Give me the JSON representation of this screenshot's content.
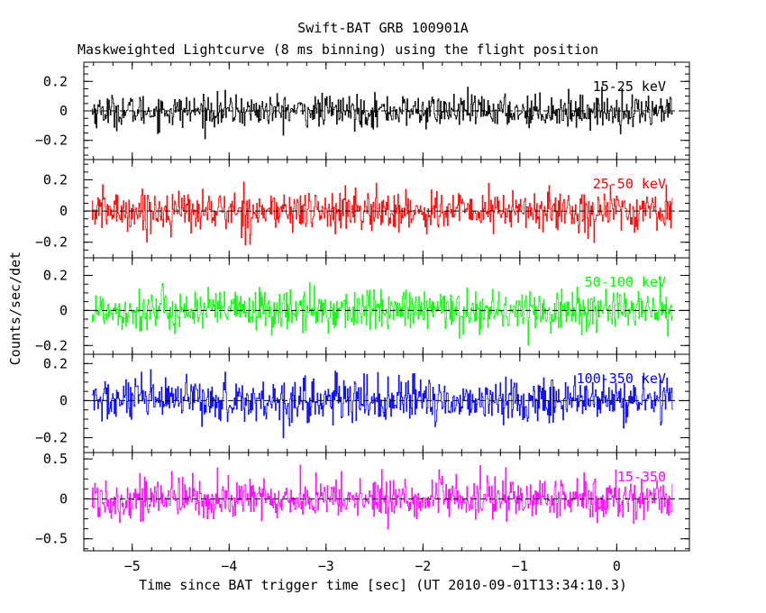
{
  "chart_data": {
    "type": "line",
    "title": "Swift-BAT GRB 100901A",
    "subtitle": "Maskweighted Lightcurve (8 ms binning) using the flight position",
    "xlabel": "Time since BAT trigger time [sec] (UT 2010-09-01T13:34:10.3)",
    "ylabel": "Counts/sec/det",
    "xlim": [
      -5.5,
      0.75
    ],
    "x_data_range": [
      -5.42,
      0.58
    ],
    "bin_width_sec": 0.008,
    "x_ticks": [
      -5,
      -4,
      -3,
      -2,
      -1,
      0
    ],
    "x_tick_labels": [
      "−5",
      "−4",
      "−3",
      "−2",
      "−1",
      "0"
    ],
    "grid": false,
    "panels": [
      {
        "name": "15-25 keV",
        "color": "#000000",
        "ylim": [
          -0.33,
          0.33
        ],
        "y_ticks": [
          -0.2,
          0,
          0.2
        ],
        "y_tick_labels": [
          "−0.2",
          "0",
          "0.2"
        ],
        "noise_amplitude": 0.09
      },
      {
        "name": "25-50 keV",
        "color": "#ff0000",
        "ylim": [
          -0.3,
          0.33
        ],
        "y_ticks": [
          -0.2,
          0,
          0.2
        ],
        "y_tick_labels": [
          "−0.2",
          "0",
          "0.2"
        ],
        "noise_amplitude": 0.11
      },
      {
        "name": "50-100 keV",
        "color": "#00ff00",
        "ylim": [
          -0.25,
          0.3
        ],
        "y_ticks": [
          -0.2,
          0,
          0.2
        ],
        "y_tick_labels": [
          "−0.2",
          "0",
          "0.2"
        ],
        "noise_amplitude": 0.1
      },
      {
        "name": "100-350 keV",
        "color": "#0000ff",
        "ylim": [
          -0.28,
          0.25
        ],
        "y_ticks": [
          -0.2,
          0,
          0.2
        ],
        "y_tick_labels": [
          "−0.2",
          "0",
          "0.2"
        ],
        "noise_amplitude": 0.1
      },
      {
        "name": "15-350",
        "color": "#ff00ff",
        "ylim": [
          -0.65,
          0.58
        ],
        "y_ticks": [
          -0.5,
          0,
          0.5
        ],
        "y_tick_labels": [
          "−0.5",
          "0",
          "0.5"
        ],
        "noise_amplitude": 0.22
      }
    ]
  }
}
